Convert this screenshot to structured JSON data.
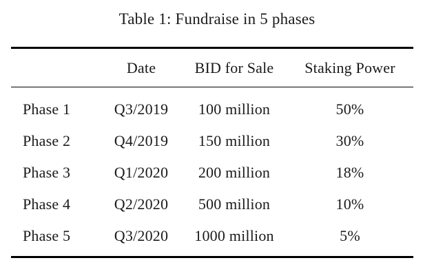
{
  "page": {
    "colors": {
      "background": "#ffffff",
      "text": "#1a1a1a",
      "rule": "#000000"
    }
  },
  "caption": "Table 1: Fundraise in 5 phases",
  "table": {
    "headers": [
      "",
      "Date",
      "BID for Sale",
      "Staking Power"
    ],
    "rows": [
      {
        "phase": "Phase 1",
        "date": "Q3/2019",
        "bid_for_sale": "100 million",
        "staking_power": "50%"
      },
      {
        "phase": "Phase 2",
        "date": "Q4/2019",
        "bid_for_sale": "150 million",
        "staking_power": "30%"
      },
      {
        "phase": "Phase 3",
        "date": "Q1/2020",
        "bid_for_sale": "200 million",
        "staking_power": "18%"
      },
      {
        "phase": "Phase 4",
        "date": "Q2/2020",
        "bid_for_sale": "500 million",
        "staking_power": "10%"
      },
      {
        "phase": "Phase 5",
        "date": "Q3/2020",
        "bid_for_sale": "1000 million",
        "staking_power": "5%"
      }
    ]
  }
}
